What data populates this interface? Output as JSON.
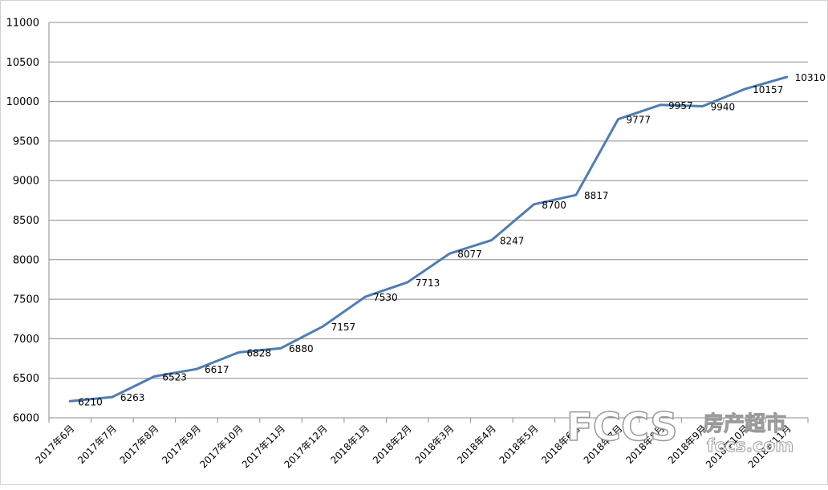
{
  "chart_data": {
    "type": "line",
    "title": "",
    "xlabel": "",
    "ylabel": "",
    "categories": [
      "2017年6月",
      "2017年7月",
      "2017年8月",
      "2017年9月",
      "2017年10月",
      "2017年11月",
      "2017年12月",
      "2018年1月",
      "2018年2月",
      "2018年3月",
      "2018年4月",
      "2018年5月",
      "2018年6月",
      "2018年7月",
      "2018年8月",
      "2018年9月",
      "2018年10月",
      "2018年11月"
    ],
    "series": [
      {
        "values": [
          6210,
          6263,
          6523,
          6617,
          6828,
          6880,
          7157,
          7530,
          7713,
          8077,
          8247,
          8700,
          8817,
          9777,
          9957,
          9940,
          10157,
          10310
        ]
      }
    ],
    "ylim": [
      6000,
      11000
    ],
    "yticks": [
      6000,
      6500,
      7000,
      7500,
      8000,
      8500,
      9000,
      9500,
      10000,
      10500,
      11000
    ],
    "grid": true,
    "data_labels": true,
    "colors": {
      "line": "#4f7db3",
      "grid": "#8c8c8c",
      "axis": "#8c8c8c",
      "text": "#000000"
    }
  },
  "watermark": {
    "brand": "FCCS",
    "cn_text": "房产超市",
    "domain": "fccs.com"
  }
}
